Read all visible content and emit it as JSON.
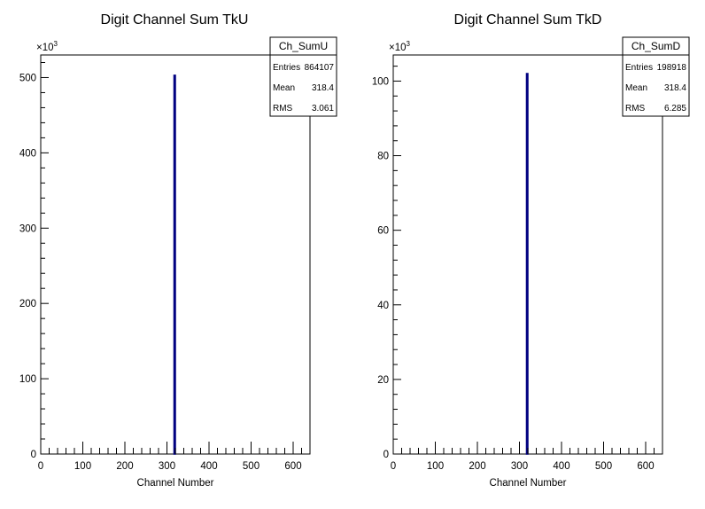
{
  "chart_data": [
    {
      "type": "bar",
      "title": "Digit Channel Sum TkU",
      "xlabel": "Channel Number",
      "ylabel": "",
      "multiplier": "×10",
      "multiplier_exp": "3",
      "xlim": [
        0,
        640
      ],
      "ylim": [
        0,
        530
      ],
      "xticks": [
        0,
        100,
        200,
        300,
        400,
        500,
        600
      ],
      "yticks": [
        0,
        100,
        200,
        300,
        400,
        500
      ],
      "bars": [
        {
          "x": 318.4,
          "width": 3,
          "value": 503
        }
      ],
      "line_color": "#000080",
      "stats": {
        "name": "Ch_SumU",
        "rows": [
          {
            "label": "Entries",
            "value": "864107"
          },
          {
            "label": "Mean",
            "value": "318.4"
          },
          {
            "label": "RMS",
            "value": "3.061"
          }
        ]
      }
    },
    {
      "type": "bar",
      "title": "Digit Channel Sum TkD",
      "xlabel": "Channel Number",
      "ylabel": "",
      "multiplier": "×10",
      "multiplier_exp": "3",
      "xlim": [
        0,
        640
      ],
      "ylim": [
        0,
        107
      ],
      "xticks": [
        0,
        100,
        200,
        300,
        400,
        500,
        600
      ],
      "yticks": [
        0,
        20,
        40,
        60,
        80,
        100
      ],
      "bars": [
        {
          "x": 318.4,
          "width": 3,
          "value": 102
        }
      ],
      "line_color": "#000080",
      "stats": {
        "name": "Ch_SumD",
        "rows": [
          {
            "label": "Entries",
            "value": "198918"
          },
          {
            "label": "Mean",
            "value": "318.4"
          },
          {
            "label": "RMS",
            "value": "6.285"
          }
        ]
      }
    }
  ]
}
